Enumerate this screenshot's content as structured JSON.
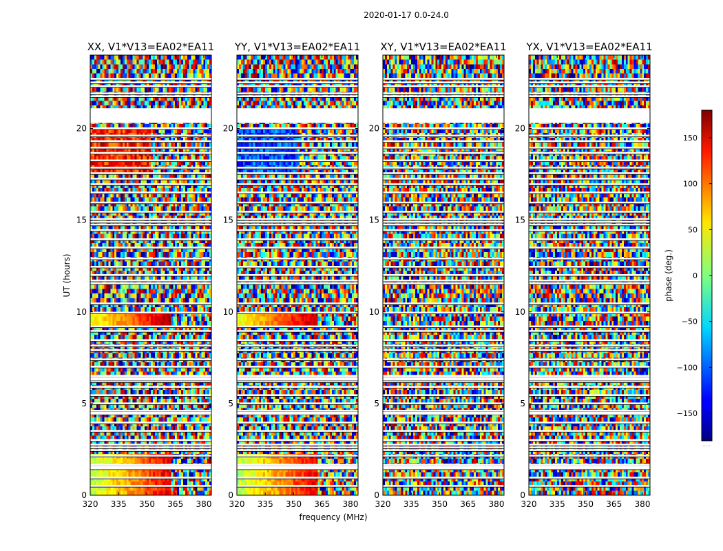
{
  "chart_data": {
    "type": "heatmap",
    "suptitle": "2020-01-17 0.0-24.0",
    "xlabel": "frequency (MHz)",
    "ylabel": "UT (hours)",
    "colorbar_label": "phase (deg.)",
    "colormap": "jet",
    "clim": [
      -180,
      180
    ],
    "colorbar_ticks": [
      150,
      100,
      50,
      0,
      -50,
      -100,
      -150
    ],
    "colorbar_tick_labels": [
      "150",
      "100",
      "50",
      "0",
      "−50",
      "−100",
      "−150"
    ],
    "colorbar_extra_label": ".....",
    "xlim": [
      320,
      384
    ],
    "ylim": [
      0,
      24
    ],
    "xticks": [
      320,
      335,
      350,
      365,
      380
    ],
    "xtick_labels": [
      "320",
      "335",
      "350",
      "365",
      "380"
    ],
    "yticks": [
      0,
      5,
      10,
      15,
      20
    ],
    "ytick_labels": [
      "0",
      "5",
      "10",
      "15",
      "20"
    ],
    "panels": [
      {
        "title": "XX, V1*V13=EA02*EA11",
        "pol": "XX",
        "coherent": true
      },
      {
        "title": "YY, V1*V13=EA02*EA11",
        "pol": "YY",
        "coherent": true
      },
      {
        "title": "XY, V1*V13=EA02*EA11",
        "pol": "XY",
        "coherent": false
      },
      {
        "title": "YX, V1*V13=EA02*EA11",
        "pol": "YX",
        "coherent": false
      }
    ],
    "flagged_ut_hours": [
      0.5,
      0.95,
      1.45,
      1.65,
      2.15,
      2.45,
      2.6,
      2.75,
      3.0,
      3.5,
      3.95,
      4.45,
      4.6,
      5.0,
      5.45,
      5.9,
      6.2,
      6.3,
      6.5,
      7.0,
      7.4,
      7.9,
      8.15,
      8.45,
      8.95,
      9.2,
      9.95,
      10.45,
      11.55,
      11.7,
      12.0,
      12.45,
      12.9,
      13.5,
      13.95,
      14.45,
      14.75,
      14.9,
      15.05,
      15.45,
      15.95,
      16.5,
      16.95,
      17.25,
      17.55,
      17.85,
      18.25,
      18.65,
      18.95,
      19.3,
      19.6,
      20.0,
      21.75,
      21.9,
      22.3,
      22.5,
      22.7
    ],
    "flagged_ut_ranges": [
      [
        20.3,
        21.1
      ],
      [
        6.25,
        6.45
      ],
      [
        4.4,
        4.55
      ],
      [
        1.45,
        1.6
      ]
    ]
  }
}
